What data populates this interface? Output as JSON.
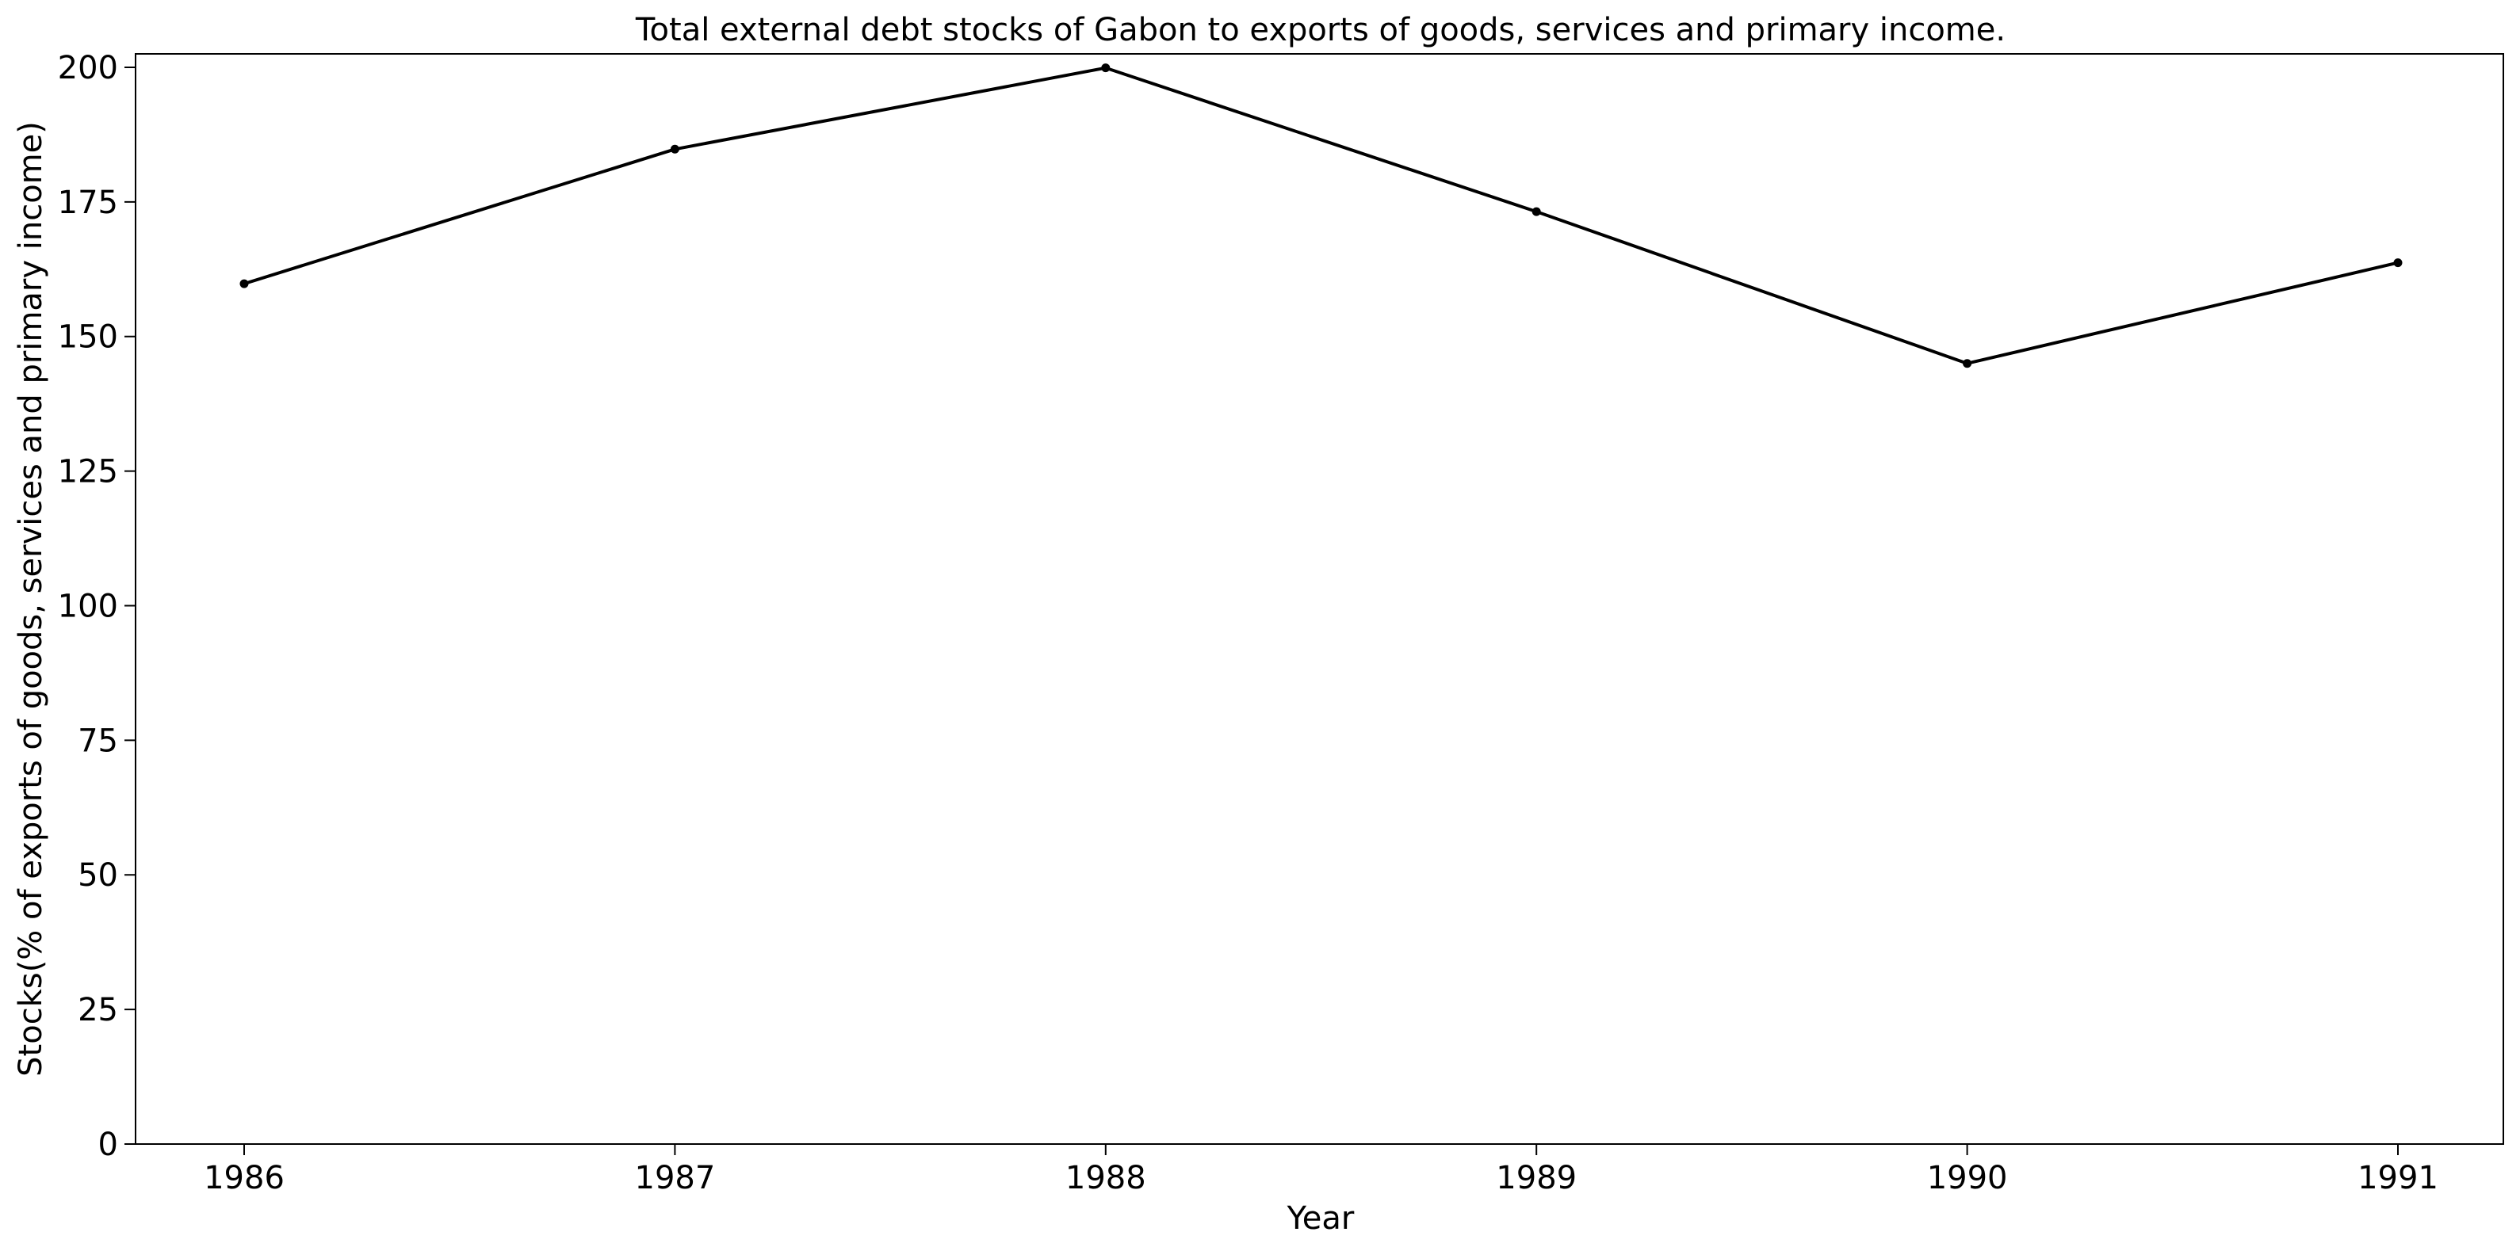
{
  "chart_data": {
    "type": "line",
    "title": "Total external debt stocks of Gabon to exports of goods, services and primary income.",
    "xlabel": "Year",
    "ylabel": "Stocks(% of exports of goods, services and primary income)",
    "x": [
      1986,
      1987,
      1988,
      1989,
      1990,
      1991
    ],
    "x_tick_labels": [
      "1986",
      "1987",
      "1988",
      "1989",
      "1990",
      "1991"
    ],
    "series": [
      {
        "values": [
          159.8,
          184.8,
          199.9,
          173.2,
          145.0,
          163.7
        ],
        "color": "#000000",
        "marker": "circle"
      }
    ],
    "ylim": [
      0,
      202.5
    ],
    "y_ticks": [
      0,
      25,
      50,
      75,
      100,
      125,
      150,
      175,
      200
    ],
    "y_tick_labels": [
      "0",
      "25",
      "50",
      "75",
      "100",
      "125",
      "150",
      "175",
      "200"
    ],
    "grid": false,
    "legend": "none"
  }
}
